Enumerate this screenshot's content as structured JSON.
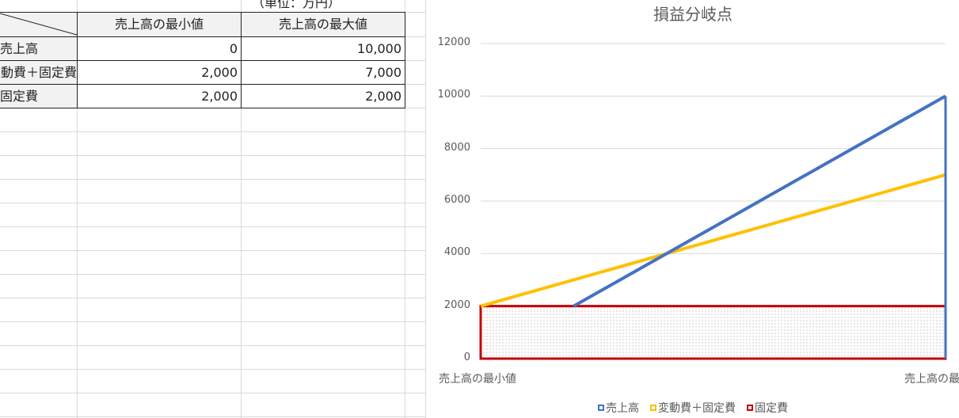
{
  "sheet": {
    "unit_note": "（単位：万円）",
    "headers": [
      "売上高の最小値",
      "売上高の最大値"
    ],
    "rows": [
      {
        "label": "売上高",
        "min": "0",
        "max": "10,000"
      },
      {
        "label": "変動費＋固定費",
        "min": "2,000",
        "max": "7,000"
      },
      {
        "label": "固定費",
        "min": "2,000",
        "max": "2,000"
      }
    ]
  },
  "chart_data": {
    "type": "line",
    "title": "損益分岐点",
    "categories": [
      "売上高の最小値",
      "売上高の最大値"
    ],
    "ylim": [
      0,
      12000
    ],
    "yticks": [
      "0",
      "2000",
      "4000",
      "6000",
      "8000",
      "10000",
      "12000"
    ],
    "grid": true,
    "legend_position": "bottom",
    "series": [
      {
        "name": "売上高",
        "values": [
          0,
          10000
        ],
        "color": "#4472c4"
      },
      {
        "name": "変動費＋固定費",
        "values": [
          2000,
          7000
        ],
        "color": "#ffc000"
      },
      {
        "name": "固定費",
        "values": [
          2000,
          2000
        ],
        "color": "#c00000"
      }
    ]
  }
}
